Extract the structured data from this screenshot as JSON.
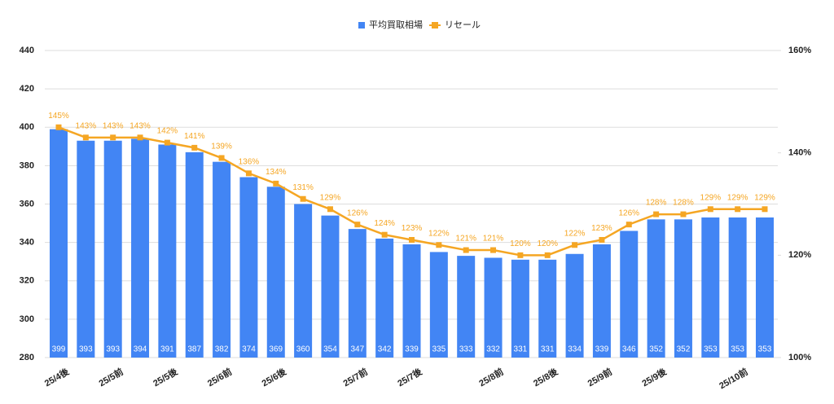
{
  "chart_data": {
    "type": "bar_line",
    "categories": [
      "25/4後",
      null,
      "25/5前",
      null,
      "25/5後",
      null,
      "25/6前",
      null,
      "25/6後",
      null,
      null,
      "25/7前",
      null,
      "25/7後",
      null,
      null,
      "25/8前",
      null,
      "25/8後",
      null,
      "25/9前",
      null,
      "25/9後",
      null,
      null,
      "25/10前",
      null
    ],
    "series": [
      {
        "name": "平均買取相場",
        "color": "#4285f4",
        "type": "bar",
        "values": [
          399,
          393,
          393,
          394,
          391,
          387,
          382,
          374,
          369,
          360,
          354,
          347,
          342,
          339,
          335,
          333,
          332,
          331,
          331,
          334,
          339,
          346,
          352,
          352,
          353,
          353,
          353
        ]
      },
      {
        "name": "リセール",
        "color": "#f5a623",
        "type": "line",
        "axis": "y2",
        "values": [
          145,
          143,
          143,
          143,
          142,
          141,
          139,
          136,
          134,
          131,
          129,
          126,
          124,
          123,
          122,
          121,
          121,
          120,
          120,
          122,
          123,
          126,
          128,
          128,
          129,
          129,
          129
        ],
        "value_labels": [
          "145%",
          "143%",
          "143%",
          "143%",
          "142%",
          "141%",
          "139%",
          "136%",
          "134%",
          "131%",
          "129%",
          "126%",
          "124%",
          "123%",
          "122%",
          "121%",
          "121%",
          "120%",
          "120%",
          "122%",
          "123%",
          "126%",
          "128%",
          "128%",
          "129%",
          "129%",
          "129%"
        ]
      }
    ],
    "ylim": [
      280,
      440
    ],
    "yticks": [
      280,
      300,
      320,
      340,
      360,
      380,
      400,
      420,
      440
    ],
    "y2lim": [
      100,
      160
    ],
    "y2ticks": [
      {
        "value": 100,
        "label": "100%"
      },
      {
        "value": 120,
        "label": "120%"
      },
      {
        "value": 140,
        "label": "140%"
      },
      {
        "value": 160,
        "label": "160%"
      }
    ],
    "grid": true,
    "legend": "top"
  }
}
